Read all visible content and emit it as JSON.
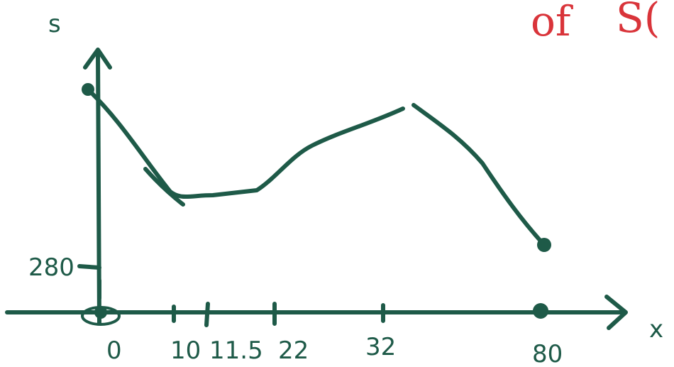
{
  "graph": {
    "y_axis_label": "s",
    "x_axis_label": "x",
    "y_marker_label": "280",
    "x_tick_labels": [
      "0",
      "10",
      "11.5",
      "22",
      "32",
      "80"
    ],
    "margin_note": [
      "of",
      "S("
    ]
  }
}
